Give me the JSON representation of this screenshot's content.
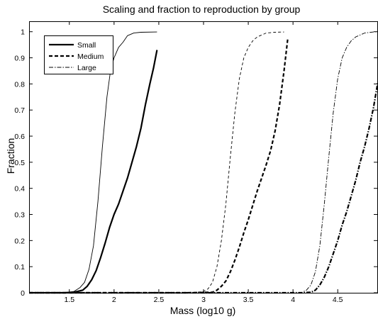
{
  "chart_data": {
    "type": "line",
    "title": "Scaling and fraction to reproduction by group",
    "xlabel": "Mass (log10 g)",
    "ylabel": "Fraction",
    "xlim": [
      1.05,
      4.95
    ],
    "ylim": [
      0,
      1.04
    ],
    "xticks": [
      "1.5",
      "2",
      "2.5",
      "3",
      "3.5",
      "4",
      "4.5"
    ],
    "yticks": [
      "0",
      "0.1",
      "0.2",
      "0.3",
      "0.4",
      "0.5",
      "0.6",
      "0.7",
      "0.8",
      "0.9",
      "1"
    ],
    "legend_position": "top-left",
    "legend": [
      {
        "name": "Small",
        "style": "solid"
      },
      {
        "name": "Medium",
        "style": "dashed"
      },
      {
        "name": "Large",
        "style": "dashdot"
      }
    ],
    "series": [
      {
        "name": "Small",
        "style": "solid",
        "weight": "thin",
        "points": [
          [
            1.05,
            0
          ],
          [
            1.3,
            0
          ],
          [
            1.45,
            0.001
          ],
          [
            1.55,
            0.005
          ],
          [
            1.62,
            0.02
          ],
          [
            1.67,
            0.04
          ],
          [
            1.72,
            0.09
          ],
          [
            1.77,
            0.18
          ],
          [
            1.82,
            0.35
          ],
          [
            1.87,
            0.56
          ],
          [
            1.92,
            0.75
          ],
          [
            1.96,
            0.85
          ],
          [
            2.0,
            0.9
          ],
          [
            2.05,
            0.94
          ],
          [
            2.1,
            0.96
          ],
          [
            2.15,
            0.985
          ],
          [
            2.22,
            0.995
          ],
          [
            2.3,
            0.998
          ],
          [
            2.48,
            0.999
          ]
        ]
      },
      {
        "name": "Small",
        "style": "solid",
        "weight": "thick",
        "points": [
          [
            1.05,
            0
          ],
          [
            1.45,
            0
          ],
          [
            1.55,
            0.002
          ],
          [
            1.65,
            0.01
          ],
          [
            1.7,
            0.025
          ],
          [
            1.75,
            0.05
          ],
          [
            1.8,
            0.085
          ],
          [
            1.85,
            0.135
          ],
          [
            1.9,
            0.19
          ],
          [
            1.95,
            0.25
          ],
          [
            2.0,
            0.3
          ],
          [
            2.05,
            0.34
          ],
          [
            2.1,
            0.39
          ],
          [
            2.15,
            0.44
          ],
          [
            2.2,
            0.5
          ],
          [
            2.25,
            0.56
          ],
          [
            2.3,
            0.63
          ],
          [
            2.35,
            0.72
          ],
          [
            2.4,
            0.8
          ],
          [
            2.44,
            0.86
          ],
          [
            2.48,
            0.93
          ]
        ]
      },
      {
        "name": "Medium",
        "style": "dashed",
        "weight": "thin",
        "points": [
          [
            1.05,
            0
          ],
          [
            2.5,
            0
          ],
          [
            2.9,
            0.001
          ],
          [
            3.0,
            0.005
          ],
          [
            3.05,
            0.015
          ],
          [
            3.1,
            0.04
          ],
          [
            3.15,
            0.1
          ],
          [
            3.2,
            0.2
          ],
          [
            3.25,
            0.34
          ],
          [
            3.3,
            0.52
          ],
          [
            3.35,
            0.69
          ],
          [
            3.4,
            0.82
          ],
          [
            3.45,
            0.9
          ],
          [
            3.5,
            0.94
          ],
          [
            3.55,
            0.965
          ],
          [
            3.6,
            0.98
          ],
          [
            3.7,
            0.995
          ],
          [
            3.8,
            0.998
          ],
          [
            3.9,
            0.999
          ]
        ]
      },
      {
        "name": "Medium",
        "style": "dashed",
        "weight": "thick",
        "points": [
          [
            1.05,
            0
          ],
          [
            2.8,
            0
          ],
          [
            3.1,
            0.002
          ],
          [
            3.15,
            0.01
          ],
          [
            3.2,
            0.025
          ],
          [
            3.25,
            0.045
          ],
          [
            3.3,
            0.08
          ],
          [
            3.35,
            0.125
          ],
          [
            3.4,
            0.175
          ],
          [
            3.45,
            0.23
          ],
          [
            3.5,
            0.28
          ],
          [
            3.55,
            0.335
          ],
          [
            3.6,
            0.39
          ],
          [
            3.65,
            0.44
          ],
          [
            3.7,
            0.49
          ],
          [
            3.75,
            0.545
          ],
          [
            3.8,
            0.62
          ],
          [
            3.85,
            0.72
          ],
          [
            3.9,
            0.85
          ],
          [
            3.94,
            0.97
          ]
        ]
      },
      {
        "name": "Large",
        "style": "dashdot",
        "weight": "thin",
        "points": [
          [
            1.05,
            0
          ],
          [
            3.9,
            0
          ],
          [
            4.1,
            0.002
          ],
          [
            4.15,
            0.01
          ],
          [
            4.2,
            0.03
          ],
          [
            4.25,
            0.08
          ],
          [
            4.3,
            0.18
          ],
          [
            4.35,
            0.34
          ],
          [
            4.4,
            0.52
          ],
          [
            4.45,
            0.69
          ],
          [
            4.5,
            0.82
          ],
          [
            4.55,
            0.9
          ],
          [
            4.6,
            0.94
          ],
          [
            4.65,
            0.965
          ],
          [
            4.7,
            0.98
          ],
          [
            4.8,
            0.995
          ],
          [
            4.9,
            0.999
          ],
          [
            4.95,
            1.0
          ]
        ]
      },
      {
        "name": "Large",
        "style": "dashdot",
        "weight": "thick",
        "points": [
          [
            1.05,
            0
          ],
          [
            4.1,
            0
          ],
          [
            4.2,
            0.002
          ],
          [
            4.25,
            0.01
          ],
          [
            4.3,
            0.03
          ],
          [
            4.35,
            0.06
          ],
          [
            4.4,
            0.1
          ],
          [
            4.45,
            0.15
          ],
          [
            4.5,
            0.2
          ],
          [
            4.55,
            0.26
          ],
          [
            4.6,
            0.31
          ],
          [
            4.65,
            0.37
          ],
          [
            4.7,
            0.43
          ],
          [
            4.75,
            0.5
          ],
          [
            4.8,
            0.56
          ],
          [
            4.85,
            0.63
          ],
          [
            4.9,
            0.71
          ],
          [
            4.95,
            0.81
          ]
        ]
      }
    ]
  }
}
